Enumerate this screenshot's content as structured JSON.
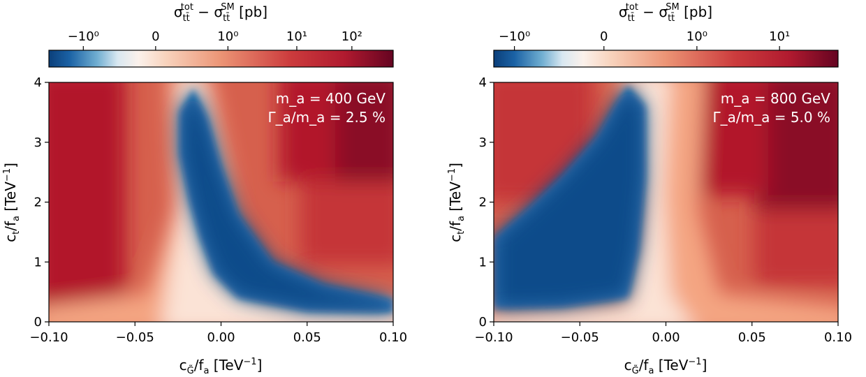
{
  "chart_data": [
    {
      "type": "heatmap",
      "colorbar": {
        "label": "σ_tt̄^tot − σ_tt̄^SM [pb]",
        "scale": "symlog",
        "ticks": [
          "−10⁰",
          "0",
          "10⁰",
          "10¹",
          "10²"
        ],
        "range": [
          -5,
          400
        ],
        "colormap": "RdBu_r"
      },
      "xlabel": "c_G̃/f_a [TeV⁻¹]",
      "ylabel": "c_t/f_a [TeV⁻¹]",
      "xlim": [
        -0.1,
        0.1
      ],
      "ylim": [
        0,
        4
      ],
      "xticks": [
        -0.1,
        -0.05,
        0.0,
        0.05,
        0.1
      ],
      "xtick_labels": [
        "−0.10",
        "−0.05",
        "0.00",
        "0.05",
        "0.10"
      ],
      "yticks": [
        0,
        1,
        2,
        3,
        4
      ],
      "annotation": [
        "m_a = 400 GeV",
        "Γ_a/m_a = 2.5 %"
      ],
      "negative_region_boundary": [
        {
          "x": -0.016,
          "y": 3.9
        },
        {
          "x": -0.024,
          "y": 3.5
        },
        {
          "x": -0.024,
          "y": 2.8
        },
        {
          "x": -0.018,
          "y": 2.0
        },
        {
          "x": -0.012,
          "y": 1.4
        },
        {
          "x": -0.004,
          "y": 0.8
        },
        {
          "x": 0.01,
          "y": 0.4
        },
        {
          "x": 0.05,
          "y": 0.18
        },
        {
          "x": 0.1,
          "y": 0.15
        },
        {
          "x": 0.1,
          "y": 0.38
        },
        {
          "x": 0.06,
          "y": 0.62
        },
        {
          "x": 0.03,
          "y": 1.0
        },
        {
          "x": 0.01,
          "y": 1.8
        },
        {
          "x": 0.0,
          "y": 2.6
        },
        {
          "x": -0.008,
          "y": 3.4
        }
      ]
    },
    {
      "type": "heatmap",
      "colorbar": {
        "label": "σ_tt̄^tot − σ_tt̄^SM [pb]",
        "scale": "symlog",
        "ticks": [
          "−10⁰",
          "0",
          "10⁰",
          "10¹"
        ],
        "range": [
          -3,
          80
        ],
        "colormap": "RdBu_r"
      },
      "xlabel": "c_G̃/f_a [TeV⁻¹]",
      "ylabel": "c_t/f_a [TeV⁻¹]",
      "xlim": [
        -0.1,
        0.1
      ],
      "ylim": [
        0,
        4
      ],
      "xticks": [
        -0.1,
        -0.05,
        0.0,
        0.05,
        0.1
      ],
      "xtick_labels": [
        "−0.10",
        "−0.05",
        "0.00",
        "0.05",
        "0.10"
      ],
      "yticks": [
        0,
        1,
        2,
        3,
        4
      ],
      "annotation": [
        "m_a = 800 GeV",
        "Γ_a/m_a = 5.0 %"
      ],
      "negative_region_boundary": [
        {
          "x": -0.1,
          "y": 1.4
        },
        {
          "x": -0.08,
          "y": 1.9
        },
        {
          "x": -0.06,
          "y": 2.45
        },
        {
          "x": -0.04,
          "y": 3.1
        },
        {
          "x": -0.03,
          "y": 3.6
        },
        {
          "x": -0.022,
          "y": 3.95
        },
        {
          "x": -0.012,
          "y": 3.6
        },
        {
          "x": -0.012,
          "y": 2.4
        },
        {
          "x": -0.016,
          "y": 1.2
        },
        {
          "x": -0.022,
          "y": 0.4
        },
        {
          "x": -0.06,
          "y": 0.25
        },
        {
          "x": -0.1,
          "y": 0.22
        }
      ]
    }
  ]
}
